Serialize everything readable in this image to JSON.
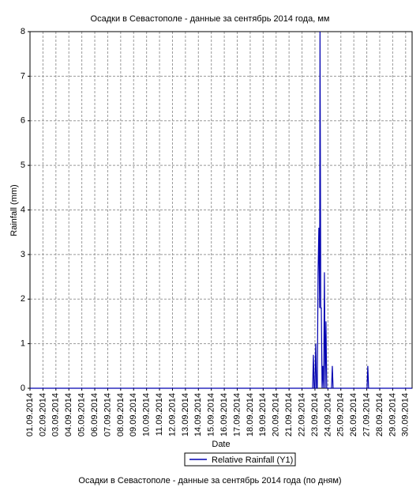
{
  "chart_data": {
    "type": "line",
    "title": "Осадки в Севастополе - данные за сентябрь 2014 года, мм",
    "subtitle": "Осадки в Севастополе - данные за сентябрь 2014 года (по дням)",
    "x_label": "Date",
    "y_label": "Rainfall (mm)",
    "x": [
      1,
      22.82,
      22.88,
      22.94,
      23.0,
      23.06,
      23.12,
      23.18,
      23.24,
      23.3,
      23.36,
      23.39,
      23.45,
      23.49,
      23.55,
      23.61,
      23.67,
      23.73,
      23.79,
      23.85,
      23.91,
      24.28,
      24.34,
      24.4,
      27.02,
      27.08,
      27.14,
      30.5
    ],
    "series": [
      {
        "name": "Relative Rainfall (Y1)",
        "color": "#0000b0",
        "values": [
          0,
          0,
          0.75,
          0,
          0,
          1.0,
          0,
          0,
          2.6,
          3.6,
          1.8,
          8,
          1.8,
          1.8,
          0,
          0.5,
          0,
          2.6,
          0,
          1.5,
          0,
          0,
          0.5,
          0,
          0,
          0.5,
          0,
          0
        ]
      }
    ],
    "xlim": [
      1,
      30.5
    ],
    "ylim": [
      0,
      8
    ],
    "xticks": [
      {
        "value": 1,
        "label": "01.09.2014"
      },
      {
        "value": 2,
        "label": "02.09.2014"
      },
      {
        "value": 3,
        "label": "03.09.2014"
      },
      {
        "value": 4,
        "label": "04.09.2014"
      },
      {
        "value": 5,
        "label": "05.09.2014"
      },
      {
        "value": 6,
        "label": "06.09.2014"
      },
      {
        "value": 7,
        "label": "07.09.2014"
      },
      {
        "value": 8,
        "label": "08.09.2014"
      },
      {
        "value": 9,
        "label": "09.09.2014"
      },
      {
        "value": 10,
        "label": "10.09.2014"
      },
      {
        "value": 11,
        "label": "11.09.2014"
      },
      {
        "value": 12,
        "label": "12.09.2014"
      },
      {
        "value": 13,
        "label": "13.09.2014"
      },
      {
        "value": 14,
        "label": "14.09.2014"
      },
      {
        "value": 15,
        "label": "15.09.2014"
      },
      {
        "value": 16,
        "label": "16.09.2014"
      },
      {
        "value": 17,
        "label": "17.09.2014"
      },
      {
        "value": 18,
        "label": "18.09.2014"
      },
      {
        "value": 19,
        "label": "19.09.2014"
      },
      {
        "value": 20,
        "label": "20.09.2014"
      },
      {
        "value": 21,
        "label": "21.09.2014"
      },
      {
        "value": 22,
        "label": "22.09.2014"
      },
      {
        "value": 23,
        "label": "23.09.2014"
      },
      {
        "value": 24,
        "label": "24.09.2014"
      },
      {
        "value": 25,
        "label": "25.09.2014"
      },
      {
        "value": 26,
        "label": "26.09.2014"
      },
      {
        "value": 27,
        "label": "27.09.2014"
      },
      {
        "value": 28,
        "label": "28.09.2014"
      },
      {
        "value": 29,
        "label": "29.09.2014"
      },
      {
        "value": 30,
        "label": "30.09.2014"
      }
    ],
    "yticks": [
      0,
      1,
      2,
      3,
      4,
      5,
      6,
      7,
      8
    ],
    "grid": true
  }
}
